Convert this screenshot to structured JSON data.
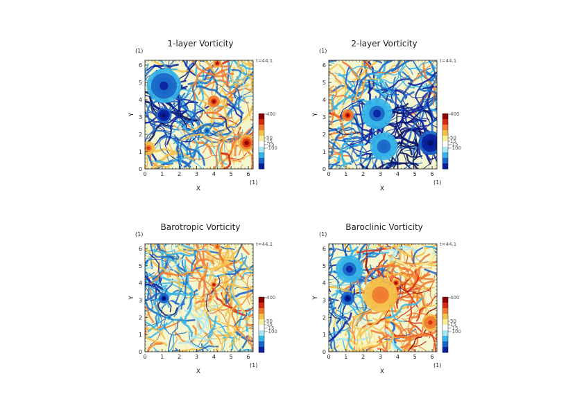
{
  "chart_data": [
    {
      "type": "heatmap",
      "title": "1-layer Vorticity",
      "xlabel": "X",
      "ylabel": "Y",
      "x_unit": "(1)",
      "y_unit": "(1)",
      "time_label": "t=44.1",
      "xlim": [
        0,
        6.28
      ],
      "ylim": [
        0,
        6.28
      ],
      "x_ticks": [
        "0",
        "1",
        "2",
        "3",
        "4",
        "5",
        "6"
      ],
      "y_ticks": [
        "0",
        "1",
        "2",
        "3",
        "4",
        "5",
        "6"
      ],
      "colorbar": {
        "ticks": [
          "400",
          "50",
          "15",
          "-15",
          "-100"
        ],
        "range": [
          -200,
          400
        ]
      },
      "features": [
        {
          "x": 1.1,
          "y": 3.1,
          "sign": "negative",
          "strength": 0.95,
          "radius": 0.45
        },
        {
          "x": 4.0,
          "y": 3.9,
          "sign": "positive",
          "strength": 0.9,
          "radius": 0.35
        },
        {
          "x": 4.2,
          "y": 6.1,
          "sign": "positive",
          "strength": 0.8,
          "radius": 0.25
        },
        {
          "x": 5.9,
          "y": 1.5,
          "sign": "positive",
          "strength": 0.8,
          "radius": 0.5
        },
        {
          "x": 0.2,
          "y": 1.2,
          "sign": "positive",
          "strength": 0.6,
          "radius": 0.4
        },
        {
          "x": 1.1,
          "y": 4.8,
          "sign": "negative",
          "strength": 0.7,
          "radius": 1.0
        },
        {
          "x": 3.6,
          "y": 2.2,
          "sign": "negative",
          "strength": 0.7,
          "radius": 0.2
        }
      ]
    },
    {
      "type": "heatmap",
      "title": "2-layer Vorticity",
      "xlabel": "X",
      "ylabel": "Y",
      "x_unit": "(1)",
      "y_unit": "(1)",
      "time_label": "t=44.1",
      "xlim": [
        0,
        6.28
      ],
      "ylim": [
        0,
        6.28
      ],
      "x_ticks": [
        "0",
        "1",
        "2",
        "3",
        "4",
        "5",
        "6"
      ],
      "y_ticks": [
        "0",
        "1",
        "2",
        "3",
        "4",
        "5",
        "6"
      ],
      "colorbar": {
        "ticks": [
          "400",
          "50",
          "15",
          "-15",
          "-100"
        ],
        "range": [
          -200,
          400
        ]
      },
      "features": [
        {
          "x": 1.1,
          "y": 3.1,
          "sign": "positive",
          "strength": 0.9,
          "radius": 0.35
        },
        {
          "x": 5.9,
          "y": 1.5,
          "sign": "negative",
          "strength": 0.95,
          "radius": 0.7
        },
        {
          "x": 2.8,
          "y": 3.2,
          "sign": "negative",
          "strength": 0.6,
          "radius": 0.9
        },
        {
          "x": 3.2,
          "y": 1.3,
          "sign": "negative",
          "strength": 0.5,
          "radius": 0.8
        }
      ]
    },
    {
      "type": "heatmap",
      "title": "Barotropic Vorticity",
      "xlabel": "X",
      "ylabel": "Y",
      "x_unit": "(1)",
      "y_unit": "(1)",
      "time_label": "t=44.1",
      "xlim": [
        0,
        6.28
      ],
      "ylim": [
        0,
        6.28
      ],
      "x_ticks": [
        "0",
        "1",
        "2",
        "3",
        "4",
        "5",
        "6"
      ],
      "y_ticks": [
        "0",
        "1",
        "2",
        "3",
        "4",
        "5",
        "6"
      ],
      "colorbar": {
        "ticks": [
          "400",
          "50",
          "15",
          "-15",
          "-100"
        ],
        "range": [
          -200,
          400
        ]
      },
      "features": [
        {
          "x": 1.1,
          "y": 3.1,
          "sign": "negative",
          "strength": 0.9,
          "radius": 0.3
        },
        {
          "x": 4.0,
          "y": 3.9,
          "sign": "positive",
          "strength": 0.8,
          "radius": 0.2
        },
        {
          "x": 4.2,
          "y": 6.1,
          "sign": "positive",
          "strength": 0.7,
          "radius": 0.2
        },
        {
          "x": 1.4,
          "y": 2.0,
          "sign": "negative",
          "strength": 0.5,
          "radius": 0.15
        }
      ]
    },
    {
      "type": "heatmap",
      "title": "Baroclinic Vorticity",
      "xlabel": "X",
      "ylabel": "Y",
      "x_unit": "(1)",
      "y_unit": "(1)",
      "time_label": "t=44.1",
      "xlim": [
        0,
        6.28
      ],
      "ylim": [
        0,
        6.28
      ],
      "x_ticks": [
        "0",
        "1",
        "2",
        "3",
        "4",
        "5",
        "6"
      ],
      "y_ticks": [
        "0",
        "1",
        "2",
        "3",
        "4",
        "5",
        "6"
      ],
      "colorbar": {
        "ticks": [
          "400",
          "50",
          "15",
          "-15",
          "-100"
        ],
        "range": [
          -200,
          400
        ]
      },
      "features": [
        {
          "x": 1.1,
          "y": 3.1,
          "sign": "negative",
          "strength": 0.9,
          "radius": 0.4
        },
        {
          "x": 3.9,
          "y": 4.0,
          "sign": "positive",
          "strength": 0.8,
          "radius": 0.25
        },
        {
          "x": 5.9,
          "y": 1.7,
          "sign": "positive",
          "strength": 0.7,
          "radius": 0.5
        },
        {
          "x": 3.0,
          "y": 3.3,
          "sign": "positive",
          "strength": 0.5,
          "radius": 1.0
        },
        {
          "x": 1.2,
          "y": 4.8,
          "sign": "negative",
          "strength": 0.6,
          "radius": 0.8
        }
      ]
    }
  ],
  "colors": {
    "colorbar": [
      "#8b0000",
      "#d42a10",
      "#f07a30",
      "#f5c04a",
      "#f7ef9a",
      "#ffffff",
      "#a8e6f5",
      "#34b4e8",
      "#1a66c7",
      "#0a1f9e"
    ]
  }
}
